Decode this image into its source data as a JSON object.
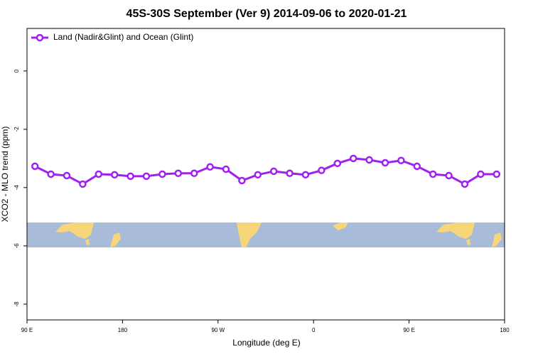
{
  "chart_data": {
    "type": "line",
    "title": "45S-30S September (Ver 9)   2014-09-06 to 2020-01-21",
    "xlabel": "Longitude (deg E)",
    "ylabel": "XCO2 - MLO trend (ppm)",
    "xlim": [
      90,
      540
    ],
    "ylim": [
      -8.54,
      1.46
    ],
    "xticks": [
      {
        "value": 90,
        "label": "90 E"
      },
      {
        "value": 180,
        "label": "180"
      },
      {
        "value": 270,
        "label": "90 W"
      },
      {
        "value": 360,
        "label": "0"
      },
      {
        "value": 450,
        "label": "90 E"
      },
      {
        "value": 540,
        "label": "180"
      }
    ],
    "yticks": [
      0,
      -2,
      -4,
      -6,
      -8
    ],
    "legend": "top-left",
    "x": [
      97.5,
      112.5,
      127.5,
      142.5,
      157.5,
      172.5,
      187.5,
      202.5,
      217.5,
      232.5,
      247.5,
      262.5,
      277.5,
      292.5,
      307.5,
      322.5,
      337.5,
      352.5,
      367.5,
      382.5,
      397.5,
      412.5,
      427.5,
      442.5,
      457.5,
      472.5,
      487.5,
      502.5,
      517.5,
      532.5
    ],
    "series": [
      {
        "name": "Land (Nadir&Glint) and Ocean (Glint)",
        "color": "#a020f0",
        "values": [
          -3.27,
          -3.54,
          -3.59,
          -3.88,
          -3.54,
          -3.56,
          -3.61,
          -3.61,
          -3.54,
          -3.51,
          -3.51,
          -3.29,
          -3.37,
          -3.76,
          -3.56,
          -3.44,
          -3.51,
          -3.56,
          -3.41,
          -3.17,
          -3.0,
          -3.05,
          -3.15,
          -3.07,
          -3.27,
          -3.54,
          -3.59,
          -3.88,
          -3.54,
          -3.54
        ]
      }
    ]
  }
}
